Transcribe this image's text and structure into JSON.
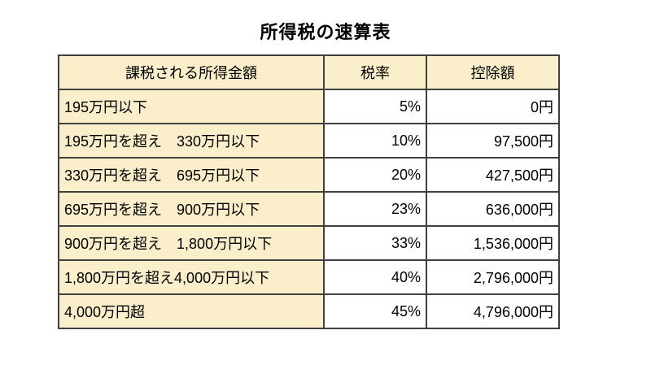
{
  "chart_data": {
    "type": "table",
    "title": "所得税の速算表",
    "columns": [
      "課税される所得金額",
      "税率",
      "控除額"
    ],
    "rows": [
      [
        "195万円以下",
        "5%",
        "0円"
      ],
      [
        "195万円を超え　330万円以下",
        "10%",
        "97,500円"
      ],
      [
        "330万円を超え　695万円以下",
        "20%",
        "427,500円"
      ],
      [
        "695万円を超え　900万円以下",
        "23%",
        "636,000円"
      ],
      [
        "900万円を超え　1,800万円以下",
        "33%",
        "1,536,000円"
      ],
      [
        "1,800万円を超え4,000万円以下",
        "40%",
        "2,796,000円"
      ],
      [
        "4,000万円超",
        "45%",
        "4,796,000円"
      ]
    ],
    "layout": {
      "legend": "none",
      "grid": "all-borders"
    },
    "colors": {
      "header_bg": "#FAEFCA",
      "income_col_bg": "#FAEFCA",
      "value_cell_bg": "#FFFFFF",
      "border": "#404040",
      "text": "#000000",
      "page_bg": "#FFFFFF"
    }
  }
}
